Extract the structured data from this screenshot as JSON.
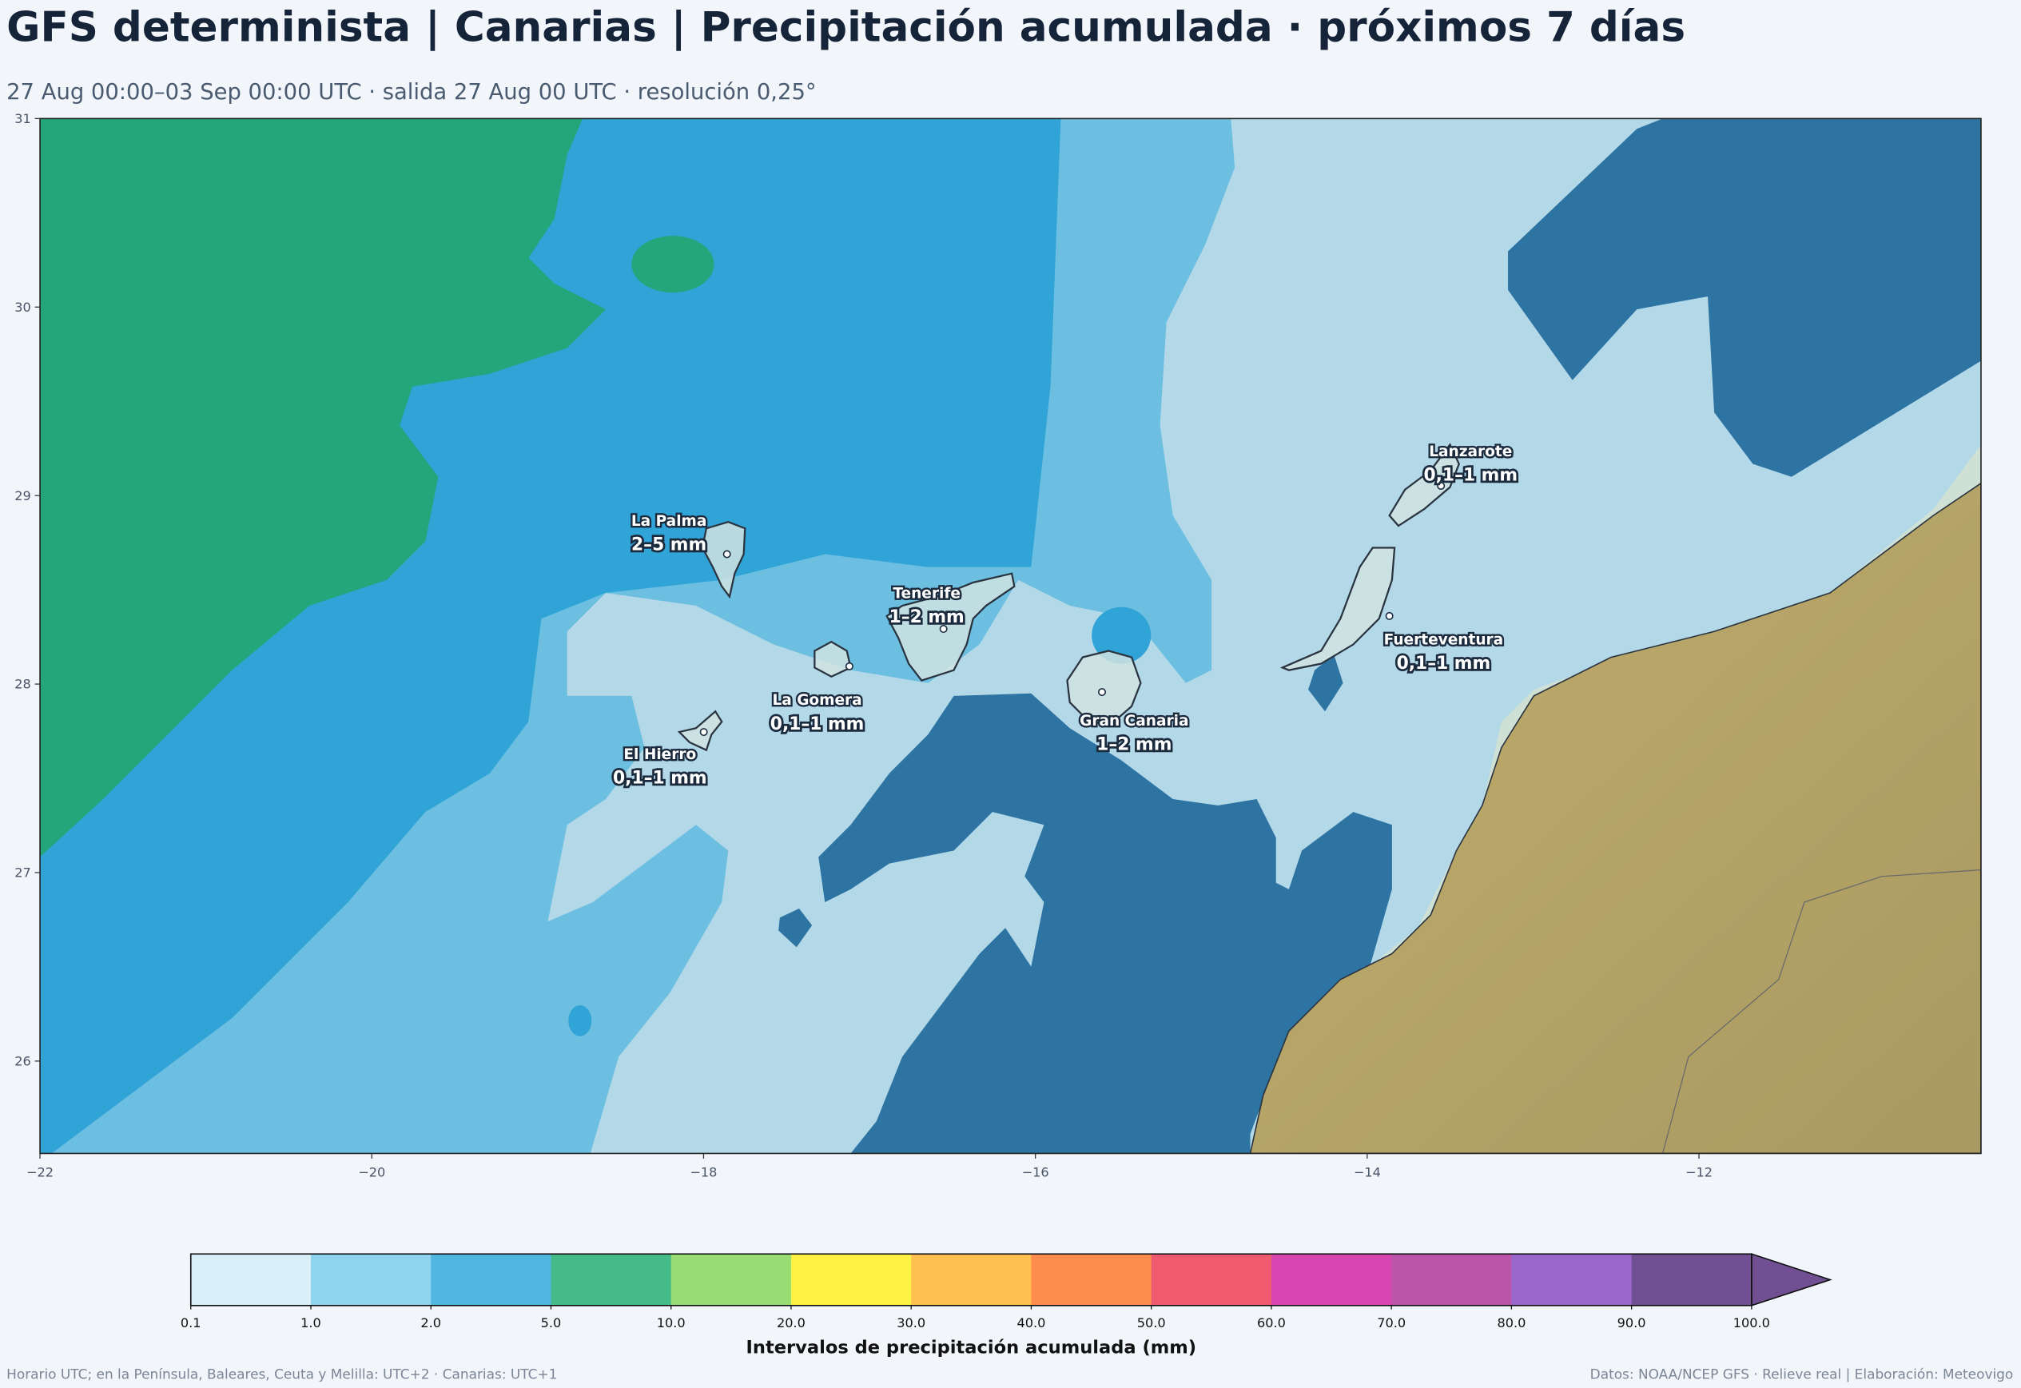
{
  "header": {
    "title": "GFS determinista | Canarias | Precipitación acumulada · próximos 7 días",
    "subtitle": "27 Aug 00:00–03 Sep 00:00 UTC · salida 27 Aug 00 UTC · resolución 0,25°"
  },
  "map": {
    "xlim": [
      -22,
      -10.3
    ],
    "ylim": [
      25.51,
      31
    ],
    "xticks": [
      {
        "value": -22,
        "label": "−22"
      },
      {
        "value": -20,
        "label": "−20"
      },
      {
        "value": -18,
        "label": "−18"
      },
      {
        "value": -16,
        "label": "−16"
      },
      {
        "value": -14,
        "label": "−14"
      },
      {
        "value": -12,
        "label": "−12"
      }
    ],
    "yticks": [
      26,
      27,
      28,
      29,
      30,
      31
    ]
  },
  "islands": [
    {
      "name": "La Palma",
      "value": "2–5 mm"
    },
    {
      "name": "Tenerife",
      "value": "1–2 mm"
    },
    {
      "name": "La Gomera",
      "value": "0,1–1 mm"
    },
    {
      "name": "El Hierro",
      "value": "0,1–1 mm"
    },
    {
      "name": "Gran Canaria",
      "value": "1–2 mm"
    },
    {
      "name": "Lanzarote",
      "value": "0,1–1 mm"
    },
    {
      "name": "Fuerteventura",
      "value": "0,1–1 mm"
    }
  ],
  "colorbar": {
    "label": "Intervalos de precipitación acumulada (mm)",
    "bounds": [
      0.1,
      {
        "value": 1,
        "label": "1.0"
      },
      {
        "value": 2,
        "label": "2.0"
      },
      {
        "value": 5,
        "label": "5.0"
      },
      {
        "value": 10,
        "label": "10.0"
      },
      {
        "value": 20,
        "label": "20.0"
      },
      {
        "value": 30,
        "label": "30.0"
      },
      {
        "value": 40,
        "label": "40.0"
      },
      {
        "value": 50,
        "label": "50.0"
      },
      {
        "value": 60,
        "label": "60.0"
      },
      {
        "value": 70,
        "label": "70.0"
      },
      {
        "value": 80,
        "label": "80.0"
      },
      {
        "value": 90,
        "label": "90.0"
      },
      {
        "value": 100,
        "label": "100.0"
      }
    ],
    "colors": [
      "#d8eff7",
      "#8fd4ee",
      "#4fb7e0",
      "#44bb88",
      "#98dd73",
      "#fff143",
      "#ffc04f",
      "#ff8c4f",
      "#f05a6e",
      "#d946b2",
      "#bb55aa",
      "#9966cc",
      "#704f92"
    ]
  },
  "footer": {
    "left": "Horario UTC; en la Península, Baleares, Ceuta y Melilla: UTC+2 · Canarias: UTC+1",
    "right": "Datos: NOAA/NCEP GFS · Relieve real | Elaboración: Meteovigo"
  }
}
